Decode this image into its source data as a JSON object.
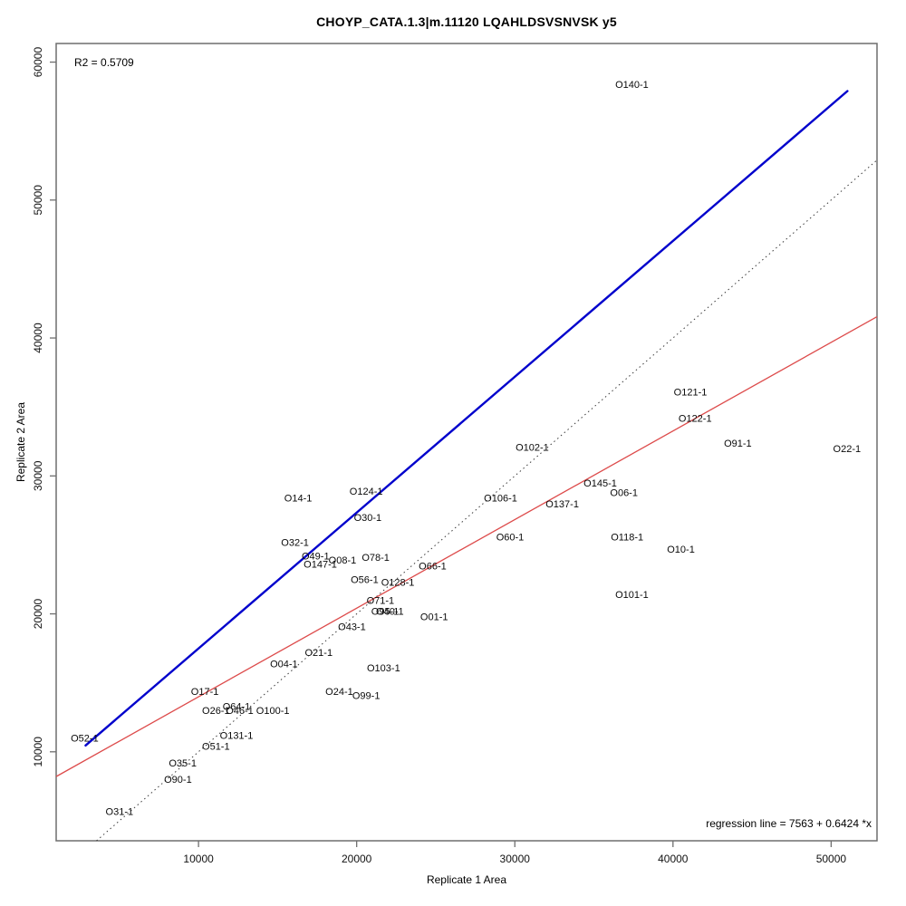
{
  "title": "CHOYP_CATA.1.3|m.11120 LQAHLDSVSNVSK y5",
  "annotations": {
    "r2": "R2 = 0.5709",
    "regression": "regression line = 7563 + 0.6424 *x"
  },
  "chart_data": {
    "type": "scatter",
    "title": "CHOYP_CATA.1.3|m.11120 LQAHLDSVSNVSK y5",
    "xlabel": "Replicate 1 Area",
    "ylabel": "Replicate 2 Area",
    "xlim": [
      1000,
      52900
    ],
    "ylim": [
      3550,
      61350
    ],
    "xticks": [
      10000,
      20000,
      30000,
      40000,
      50000
    ],
    "yticks": [
      10000,
      20000,
      30000,
      40000,
      50000,
      60000
    ],
    "grid": false,
    "r_squared": 0.5709,
    "regression_line": {
      "intercept": 7563,
      "slope": 0.6424,
      "color": "#dd4b4b"
    },
    "identity_line": {
      "slope": 1,
      "intercept": 0,
      "style": "dotted",
      "color": "#3a3a3a"
    },
    "fit_line": {
      "x1": 2860,
      "y1": 10460,
      "x2": 51030,
      "y2": 57900,
      "color": "#0000cc"
    },
    "points": [
      {
        "label": "O140-1",
        "x": 37400,
        "y": 58400
      },
      {
        "label": "O121-1",
        "x": 41100,
        "y": 36100
      },
      {
        "label": "O122-1",
        "x": 41400,
        "y": 34200
      },
      {
        "label": "O91-1",
        "x": 44100,
        "y": 32400
      },
      {
        "label": "O102-1",
        "x": 31100,
        "y": 32100
      },
      {
        "label": "O22-1",
        "x": 51000,
        "y": 32000
      },
      {
        "label": "O145-1",
        "x": 35400,
        "y": 29500
      },
      {
        "label": "O124-1",
        "x": 20600,
        "y": 28900
      },
      {
        "label": "O06-1",
        "x": 36900,
        "y": 28800
      },
      {
        "label": "O14-1",
        "x": 16300,
        "y": 28400
      },
      {
        "label": "O106-1",
        "x": 29100,
        "y": 28400
      },
      {
        "label": "O137-1",
        "x": 33000,
        "y": 28000
      },
      {
        "label": "O30-1",
        "x": 20700,
        "y": 27000
      },
      {
        "label": "O60-1",
        "x": 29700,
        "y": 25600
      },
      {
        "label": "O118-1",
        "x": 37100,
        "y": 25600
      },
      {
        "label": "O32-1",
        "x": 16100,
        "y": 25200
      },
      {
        "label": "O10-1",
        "x": 40500,
        "y": 24700
      },
      {
        "label": "O49-1",
        "x": 17400,
        "y": 24200
      },
      {
        "label": "O78-1",
        "x": 21200,
        "y": 24100
      },
      {
        "label": "O08-1",
        "x": 19100,
        "y": 23900
      },
      {
        "label": "O147-1",
        "x": 17700,
        "y": 23600
      },
      {
        "label": "O66-1",
        "x": 24800,
        "y": 23500
      },
      {
        "label": "O56-1",
        "x": 20500,
        "y": 22500
      },
      {
        "label": "O128-1",
        "x": 22600,
        "y": 22300
      },
      {
        "label": "O101-1",
        "x": 37400,
        "y": 21400
      },
      {
        "label": "O71-1",
        "x": 21500,
        "y": 21000
      },
      {
        "label": "O95-1",
        "x": 21800,
        "y": 20200
      },
      {
        "label": "O40-1",
        "x": 22100,
        "y": 20200
      },
      {
        "label": "O01-1",
        "x": 24900,
        "y": 19800
      },
      {
        "label": "O43-1",
        "x": 19700,
        "y": 19100
      },
      {
        "label": "O21-1",
        "x": 17600,
        "y": 17200
      },
      {
        "label": "O04-1",
        "x": 15400,
        "y": 16400
      },
      {
        "label": "O103-1",
        "x": 21700,
        "y": 16100
      },
      {
        "label": "O17-1",
        "x": 10400,
        "y": 14400
      },
      {
        "label": "O24-1",
        "x": 18900,
        "y": 14400
      },
      {
        "label": "O99-1",
        "x": 20600,
        "y": 14100
      },
      {
        "label": "O64-1",
        "x": 12400,
        "y": 13300
      },
      {
        "label": "O26-1",
        "x": 11100,
        "y": 13000
      },
      {
        "label": "O46-1",
        "x": 12600,
        "y": 13000
      },
      {
        "label": "O100-1",
        "x": 14700,
        "y": 13000
      },
      {
        "label": "O131-1",
        "x": 12400,
        "y": 11200
      },
      {
        "label": "O52-1",
        "x": 2800,
        "y": 11000
      },
      {
        "label": "O51-1",
        "x": 11100,
        "y": 10400
      },
      {
        "label": "O35-1",
        "x": 9000,
        "y": 9200
      },
      {
        "label": "O90-1",
        "x": 8700,
        "y": 8000
      },
      {
        "label": "O31-1",
        "x": 5000,
        "y": 5700
      }
    ]
  }
}
